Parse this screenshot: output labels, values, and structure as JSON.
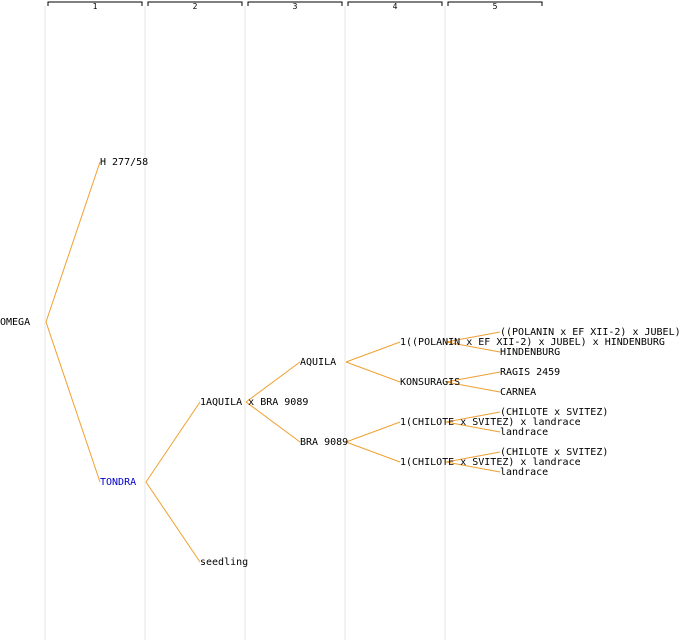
{
  "columns": [
    "1",
    "2",
    "3",
    "4",
    "5"
  ],
  "colors": {
    "edge": "#f0a030",
    "highlight": "#0000cc",
    "text": "#000000",
    "column_line": "#e6e6e6"
  },
  "nodes": [
    {
      "id": "omega",
      "label": "OMEGA",
      "col": 0
    },
    {
      "id": "h277",
      "label": "H 277/58",
      "col": 1,
      "parent": "omega"
    },
    {
      "id": "tondra",
      "label": "TONDRA",
      "col": 1,
      "parent": "omega",
      "highlight": true
    },
    {
      "id": "aqbra",
      "label": "1AQUILA x BRA 9089",
      "col": 2,
      "parent": "tondra"
    },
    {
      "id": "seedling",
      "label": "seedling",
      "col": 2,
      "parent": "tondra"
    },
    {
      "id": "aquila",
      "label": "AQUILA",
      "col": 3,
      "parent": "aqbra"
    },
    {
      "id": "bra9089",
      "label": "BRA 9089",
      "col": 3,
      "parent": "aqbra"
    },
    {
      "id": "polhind",
      "label": "1((POLANIN x EF XII-2) x JUBEL) x HINDENBURG",
      "col": 4,
      "parent": "aquila"
    },
    {
      "id": "konsuragis",
      "label": "KONSURAGIS",
      "col": 4,
      "parent": "aquila"
    },
    {
      "id": "chil1",
      "label": "1(CHILOTE x SVITEZ) x landrace",
      "col": 4,
      "parent": "bra9089"
    },
    {
      "id": "chil2",
      "label": "1(CHILOTE x SVITEZ) x landrace",
      "col": 4,
      "parent": "bra9089"
    },
    {
      "id": "poljub",
      "label": "((POLANIN x EF XII-2) x JUBEL)",
      "col": 5,
      "parent": "polhind"
    },
    {
      "id": "hindenburg",
      "label": "HINDENBURG",
      "col": 5,
      "parent": "polhind"
    },
    {
      "id": "ragis",
      "label": "RAGIS 2459",
      "col": 5,
      "parent": "konsuragis"
    },
    {
      "id": "carnea",
      "label": "CARNEA",
      "col": 5,
      "parent": "konsuragis"
    },
    {
      "id": "chsv1",
      "label": "(CHILOTE x SVITEZ)",
      "col": 5,
      "parent": "chil1"
    },
    {
      "id": "land1",
      "label": "landrace",
      "col": 5,
      "parent": "chil1"
    },
    {
      "id": "chsv2",
      "label": "(CHILOTE x SVITEZ)",
      "col": 5,
      "parent": "chil2"
    },
    {
      "id": "land2",
      "label": "landrace",
      "col": 5,
      "parent": "chil2"
    }
  ]
}
